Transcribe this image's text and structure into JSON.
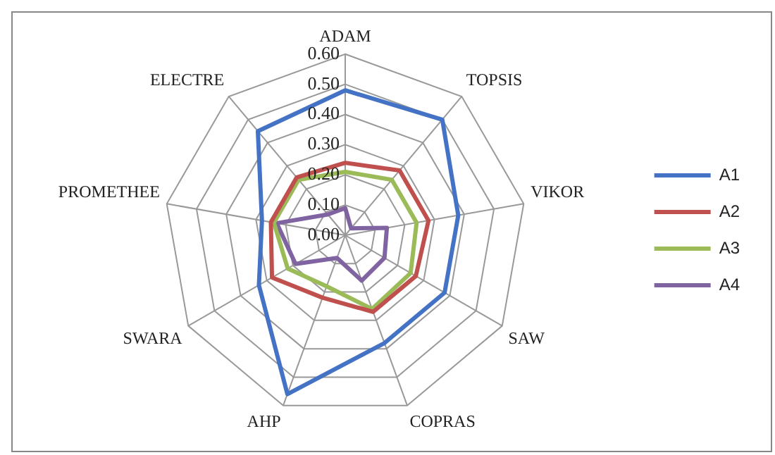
{
  "chart_data": {
    "type": "radar",
    "categories": [
      "ADAM",
      "TOPSIS",
      "VIKOR",
      "SAW",
      "COPRAS",
      "AHP",
      "SWARA",
      "PROMETHEE",
      "ELECTRE"
    ],
    "series": [
      {
        "name": "A1",
        "color": "#4472c4",
        "values": [
          0.48,
          0.5,
          0.38,
          0.38,
          0.38,
          0.56,
          0.33,
          0.28,
          0.45
        ]
      },
      {
        "name": "A2",
        "color": "#c0504d",
        "values": [
          0.24,
          0.28,
          0.28,
          0.27,
          0.27,
          0.22,
          0.28,
          0.25,
          0.25
        ]
      },
      {
        "name": "A3",
        "color": "#9bbb59",
        "values": [
          0.21,
          0.24,
          0.24,
          0.25,
          0.26,
          0.18,
          0.22,
          0.24,
          0.24
        ]
      },
      {
        "name": "A4",
        "color": "#8064a2",
        "values": [
          0.09,
          0.03,
          0.14,
          0.15,
          0.16,
          0.08,
          0.19,
          0.23,
          0.09
        ]
      }
    ],
    "ylim": [
      0,
      0.6
    ],
    "yticks": [
      {
        "value": 0,
        "label": "0.00"
      },
      {
        "value": 0.1,
        "label": "0.10"
      },
      {
        "value": 0.2,
        "label": "0.20"
      },
      {
        "value": 0.3,
        "label": "0.30"
      },
      {
        "value": 0.4,
        "label": "0.40"
      },
      {
        "value": 0.5,
        "label": "0.50"
      },
      {
        "value": 0.6,
        "label": "0.60"
      }
    ],
    "grid": true,
    "legend": "right",
    "marker": "none",
    "line_style": "solid"
  }
}
